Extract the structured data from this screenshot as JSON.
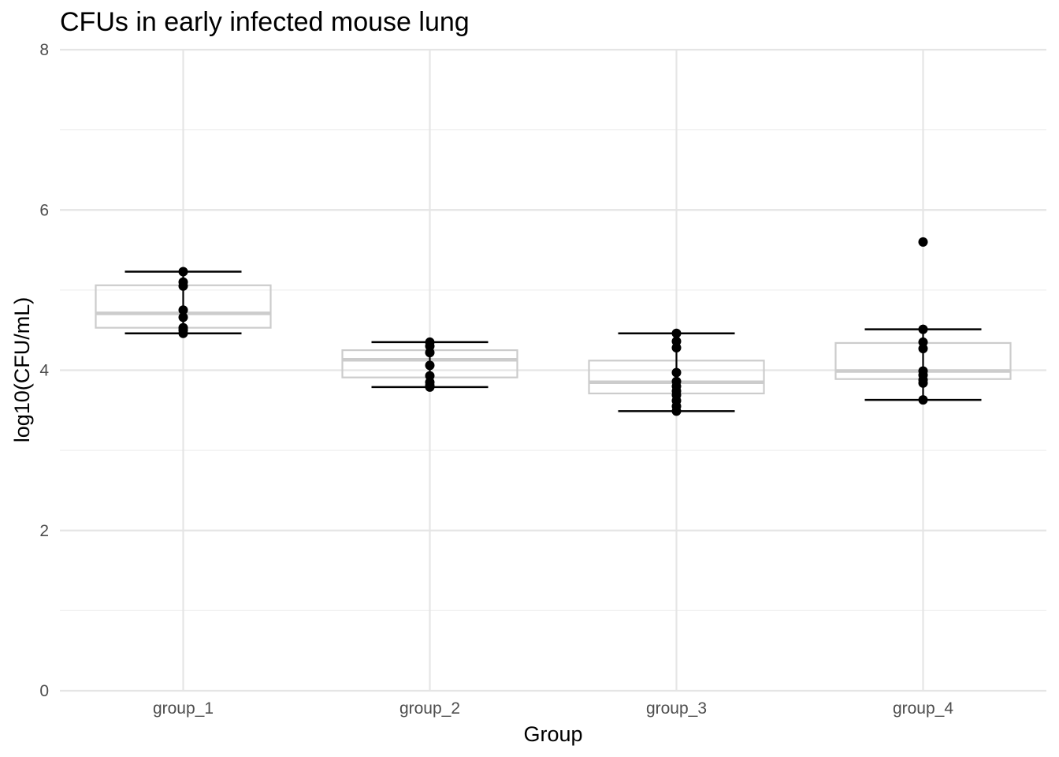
{
  "chart_data": {
    "type": "box",
    "title": "CFUs in early infected mouse lung",
    "xlabel": "Group",
    "ylabel": "log10(CFU/mL)",
    "ylim": [
      0,
      8
    ],
    "yticks": [
      "0",
      "2",
      "4",
      "6",
      "8"
    ],
    "grid": true,
    "categories": [
      "group_1",
      "group_2",
      "group_3",
      "group_4"
    ],
    "boxes": [
      {
        "q1": 4.53,
        "median": 4.71,
        "q3": 5.06,
        "whisker_low": 4.46,
        "whisker_high": 5.23
      },
      {
        "q1": 3.91,
        "median": 4.13,
        "q3": 4.25,
        "whisker_low": 3.79,
        "whisker_high": 4.35
      },
      {
        "q1": 3.71,
        "median": 3.85,
        "q3": 4.12,
        "whisker_low": 3.49,
        "whisker_high": 4.46
      },
      {
        "q1": 3.89,
        "median": 3.99,
        "q3": 4.34,
        "whisker_low": 3.63,
        "whisker_high": 4.51
      }
    ],
    "points": [
      [
        5.23,
        5.1,
        5.05,
        4.75,
        4.66,
        4.53,
        4.5,
        4.46
      ],
      [
        4.35,
        4.3,
        4.22,
        4.06,
        3.93,
        3.85,
        3.81,
        3.79
      ],
      [
        4.46,
        4.36,
        4.28,
        3.97,
        3.86,
        3.8,
        3.74,
        3.69,
        3.62,
        3.55,
        3.49
      ],
      [
        5.6,
        4.51,
        4.35,
        4.27,
        3.99,
        3.94,
        3.88,
        3.84,
        3.63
      ]
    ],
    "colors": {
      "box": "#cccccc",
      "median": "#cccccc",
      "whisker": "#000000",
      "point": "#000000",
      "grid_major": "#e5e5e5",
      "grid_minor": "#efefef"
    }
  }
}
